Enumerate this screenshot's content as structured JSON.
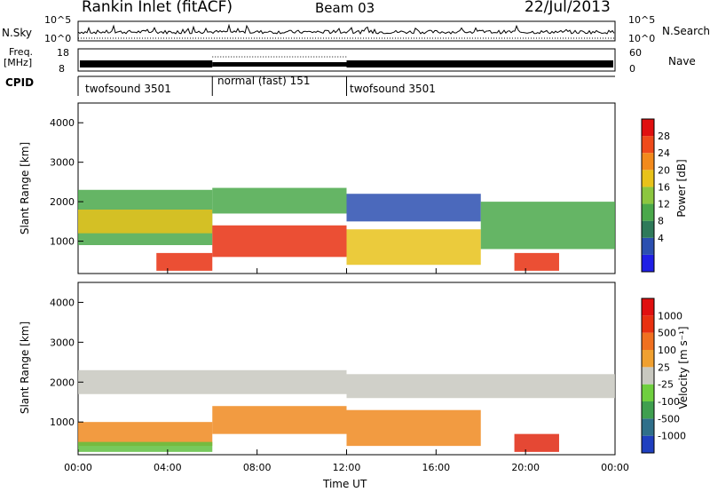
{
  "header": {
    "station": "Rankin Inlet (fitACF)",
    "beam": "Beam 03",
    "date": "22/Jul/2013"
  },
  "top_panels": {
    "nsky": {
      "label": "N.Sky",
      "ticks": [
        "10^5",
        "10^0"
      ]
    },
    "nsearch": {
      "label": "N.Search",
      "ticks": [
        "10^5",
        "10^0"
      ]
    },
    "freq": {
      "label_line1": "Freq.",
      "label_line2": "[MHz]",
      "ticks": [
        "18",
        "8"
      ]
    },
    "nave": {
      "label": "Nave",
      "ticks": [
        "60",
        "0"
      ]
    },
    "cpid": {
      "label": "CPID",
      "segments": [
        {
          "name": "twofsound 3501",
          "start_hr": 0,
          "end_hr": 6
        },
        {
          "name": "normal (fast) 151",
          "start_hr": 6,
          "end_hr": 12
        },
        {
          "name": "twofsound 3501",
          "start_hr": 12,
          "end_hr": 24
        }
      ]
    }
  },
  "chart_data": [
    {
      "type": "heatmap",
      "name": "power",
      "ylabel": "Slant Range [km]",
      "xlim": [
        0,
        24
      ],
      "ylim": [
        180,
        4500
      ],
      "yticks": [
        "1000",
        "2000",
        "3000",
        "4000"
      ],
      "colorbar": {
        "label": "Power [dB]",
        "ticks": [
          "28",
          "24",
          "20",
          "16",
          "12",
          "8",
          "4"
        ],
        "colors": [
          "#1f1fe6",
          "#2b4fb0",
          "#2f7a5a",
          "#4aa84a",
          "#8cc63f",
          "#e8c21a",
          "#f28a1c",
          "#ef4a1b",
          "#e01010"
        ]
      },
      "bands": [
        {
          "t0": 0.0,
          "t1": 6.0,
          "r0": 900,
          "r1": 2300,
          "level": "mid"
        },
        {
          "t0": 0.0,
          "t1": 6.0,
          "r0": 1200,
          "r1": 1800,
          "level": "high"
        },
        {
          "t0": 3.5,
          "t1": 6.0,
          "r0": 250,
          "r1": 700,
          "level": "max"
        },
        {
          "t0": 6.0,
          "t1": 12.0,
          "r0": 1700,
          "r1": 2350,
          "level": "mid"
        },
        {
          "t0": 6.0,
          "t1": 12.0,
          "r0": 600,
          "r1": 1400,
          "level": "max"
        },
        {
          "t0": 12.0,
          "t1": 18.0,
          "r0": 400,
          "r1": 1300,
          "level": "high"
        },
        {
          "t0": 12.0,
          "t1": 18.0,
          "r0": 1500,
          "r1": 2200,
          "level": "low"
        },
        {
          "t0": 18.0,
          "t1": 24.0,
          "r0": 800,
          "r1": 2000,
          "level": "mid"
        },
        {
          "t0": 19.5,
          "t1": 21.5,
          "r0": 250,
          "r1": 700,
          "level": "max"
        }
      ]
    },
    {
      "type": "heatmap",
      "name": "velocity",
      "ylabel": "Slant Range [km]",
      "xlabel": "Time UT",
      "xlim": [
        0,
        24
      ],
      "ylim": [
        180,
        4500
      ],
      "yticks": [
        "1000",
        "2000",
        "3000",
        "4000"
      ],
      "xticks": [
        "00:00",
        "04:00",
        "08:00",
        "12:00",
        "16:00",
        "20:00",
        "00:00"
      ],
      "colorbar": {
        "label": "Velocity [m s⁻¹]",
        "ticks": [
          "1000",
          "500",
          "100",
          "25",
          "-25",
          "-100",
          "-500",
          "-1000"
        ],
        "colors": [
          "#1f3fbf",
          "#2f6f8a",
          "#3f9f4f",
          "#6fcf3f",
          "#c8c8c0",
          "#f0a030",
          "#f07020",
          "#e83010",
          "#e01010"
        ]
      },
      "bands": [
        {
          "t0": 0.0,
          "t1": 12.0,
          "r0": 1700,
          "r1": 2300,
          "level": "grey"
        },
        {
          "t0": 0.0,
          "t1": 6.0,
          "r0": 400,
          "r1": 1000,
          "level": "orange"
        },
        {
          "t0": 0.0,
          "t1": 6.0,
          "r0": 250,
          "r1": 500,
          "level": "green"
        },
        {
          "t0": 6.0,
          "t1": 12.0,
          "r0": 700,
          "r1": 1400,
          "level": "orange"
        },
        {
          "t0": 12.0,
          "t1": 24.0,
          "r0": 1600,
          "r1": 2200,
          "level": "grey"
        },
        {
          "t0": 12.0,
          "t1": 18.0,
          "r0": 400,
          "r1": 1300,
          "level": "orange"
        },
        {
          "t0": 19.5,
          "t1": 21.5,
          "r0": 250,
          "r1": 700,
          "level": "red"
        }
      ]
    }
  ]
}
